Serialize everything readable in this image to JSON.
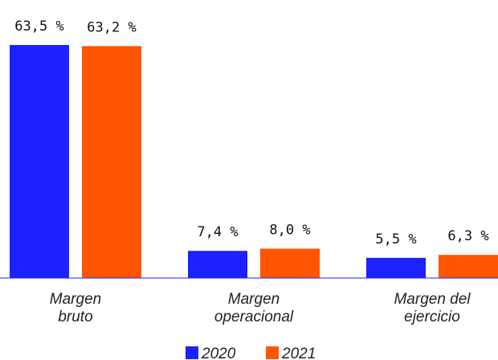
{
  "chart_data": {
    "type": "bar",
    "categories": [
      "Margen\nbruto",
      "Margen\noperacional",
      "Margen del\nejercicio"
    ],
    "series": [
      {
        "name": "2020",
        "color": "#1c22ff",
        "values": [
          63.5,
          7.4,
          5.5
        ],
        "value_labels": [
          "63,5 %",
          "7,4 %",
          "5,5 %"
        ]
      },
      {
        "name": "2021",
        "color": "#ff5500",
        "values": [
          63.2,
          8.0,
          6.3
        ],
        "value_labels": [
          "63,2 %",
          "8,0 %",
          "6,3 %"
        ]
      }
    ],
    "ylim": [
      0,
      70
    ],
    "legend": "bottom"
  }
}
